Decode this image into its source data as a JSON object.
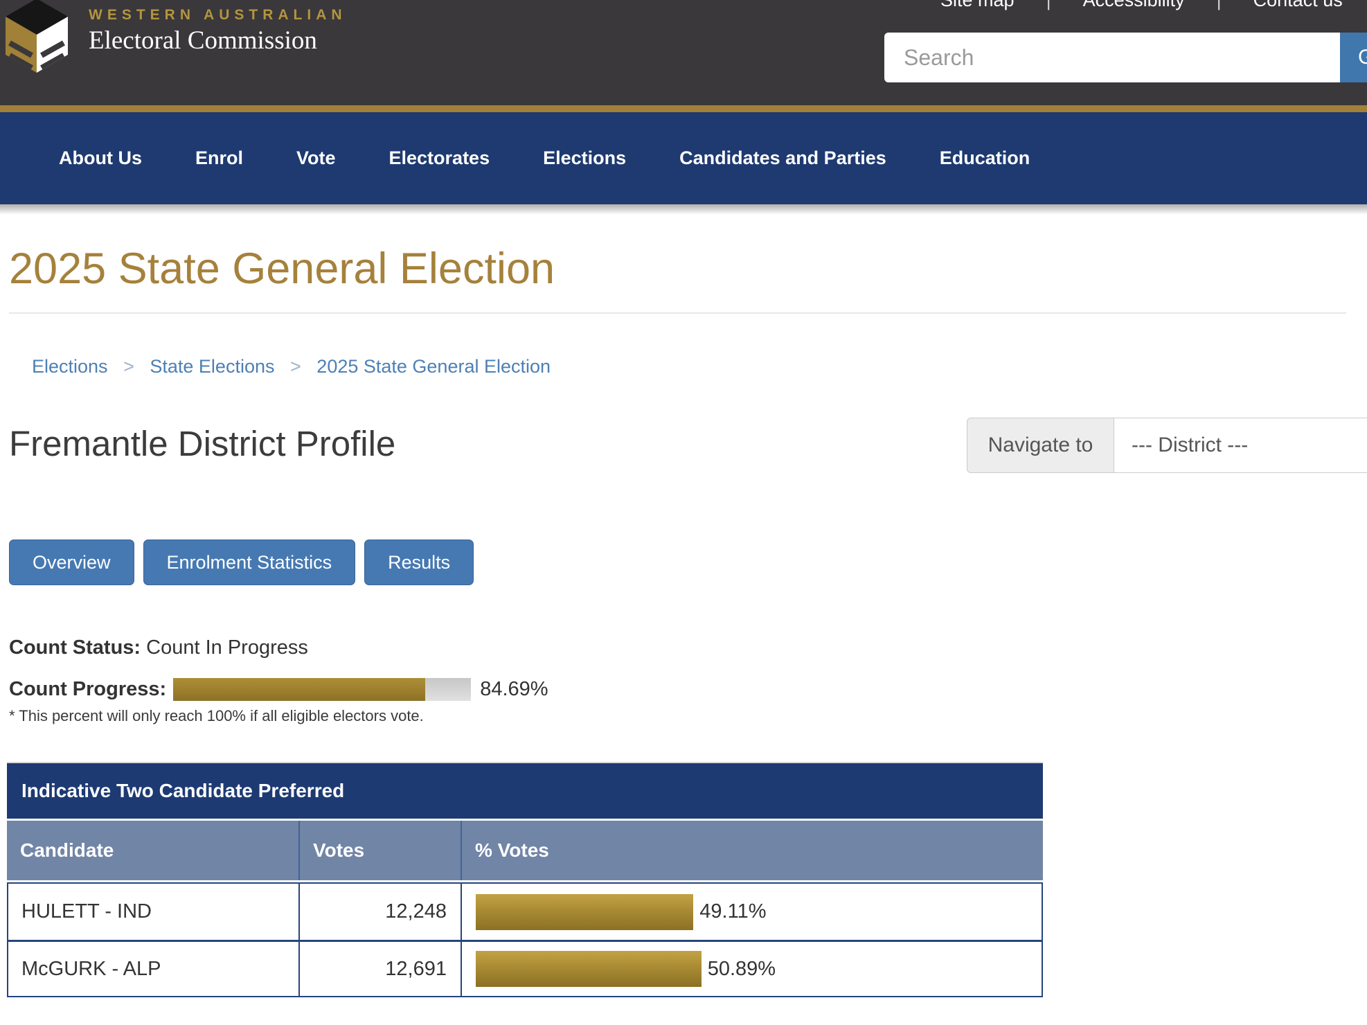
{
  "header": {
    "brand_line1": "WESTERN AUSTRALIAN",
    "brand_line2": "Electoral Commission",
    "top_links": [
      "Site map",
      "Accessibility",
      "Contact us"
    ],
    "divider": "|",
    "search_placeholder": "Search",
    "search_button_label": "Go"
  },
  "nav": {
    "items": [
      "About Us",
      "Enrol",
      "Vote",
      "Electorates",
      "Elections",
      "Candidates and Parties",
      "Education"
    ]
  },
  "page": {
    "title": "2025 State General Election",
    "breadcrumb": [
      "Elections",
      "State Elections",
      "2025 State General Election"
    ],
    "breadcrumb_sep": ">",
    "heading": "Fremantle District Profile",
    "navigate_label": "Navigate to",
    "district_value": "--- District ---",
    "tabs": [
      "Overview",
      "Enrolment Statistics",
      "Results"
    ]
  },
  "count": {
    "status_label": "Count Status:",
    "status_value": "Count In Progress",
    "progress_label": "Count Progress:",
    "progress_pct": 84.69,
    "progress_text": "84.69%",
    "note": "* This percent will only reach 100% if all eligible electors vote."
  },
  "results_table": {
    "caption": "Indicative Two Candidate Preferred",
    "columns": [
      "Candidate",
      "Votes",
      "% Votes"
    ],
    "rows": [
      {
        "candidate": "HULETT - IND",
        "votes": "12,248",
        "pct": 49.11,
        "pct_text": "49.11%"
      },
      {
        "candidate": "McGURK - ALP",
        "votes": "12,691",
        "pct": 50.89,
        "pct_text": "50.89%"
      }
    ]
  },
  "colors": {
    "header_bg": "#3a383a",
    "gold": "#a08137",
    "nav_navy": "#1e3a70",
    "title_gold": "#a5813c",
    "link_blue": "#4d7fb5",
    "button_blue": "#4679b2",
    "table_caption_navy": "#1d3a73",
    "table_header_slate": "#7185a6",
    "bar_gold": "#a8862e"
  }
}
